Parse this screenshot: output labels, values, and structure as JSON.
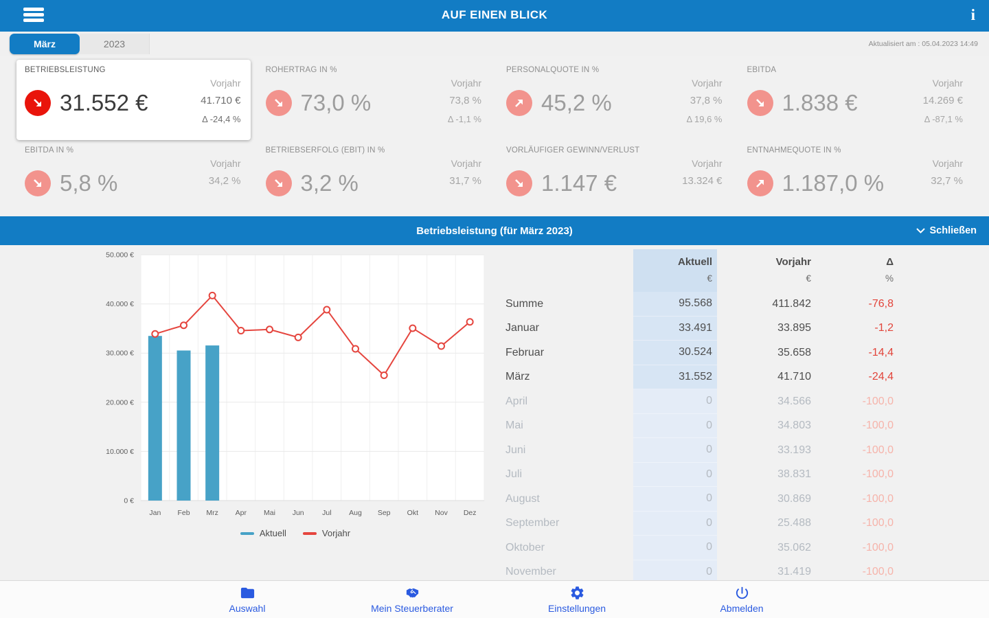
{
  "header": {
    "title": "AUF EINEN BLICK",
    "updated": "Aktualisiert am : 05.04.2023 14:49"
  },
  "tabs": [
    {
      "label": "März",
      "active": true
    },
    {
      "label": "2023",
      "active": false
    }
  ],
  "labels": {
    "vorjahr": "Vorjahr"
  },
  "kpi_cards": [
    {
      "label": "BETRIEBSLEISTUNG",
      "value": "31.552 €",
      "vorjahr": "41.710 €",
      "delta": "Δ -24,4 %",
      "trend": "down",
      "selected": true
    },
    {
      "label": "ROHERTRAG IN %",
      "value": "73,0 %",
      "vorjahr": "73,8 %",
      "delta": "Δ -1,1 %",
      "trend": "down",
      "selected": false
    },
    {
      "label": "PERSONALQUOTE IN %",
      "value": "45,2 %",
      "vorjahr": "37,8 %",
      "delta": "Δ 19,6 %",
      "trend": "up",
      "selected": false
    },
    {
      "label": "EBITDA",
      "value": "1.838 €",
      "vorjahr": "14.269 €",
      "delta": "Δ -87,1 %",
      "trend": "down",
      "selected": false
    },
    {
      "label": "EBITDA IN %",
      "value": "5,8 %",
      "vorjahr": "34,2 %",
      "delta": "",
      "trend": "down",
      "selected": false
    },
    {
      "label": "BETRIEBSERFOLG (EBIT) IN %",
      "value": "3,2 %",
      "vorjahr": "31,7 %",
      "delta": "",
      "trend": "down",
      "selected": false
    },
    {
      "label": "VORLÄUFIGER GEWINN/VERLUST",
      "value": "1.147 €",
      "vorjahr": "13.324 €",
      "delta": "",
      "trend": "down",
      "selected": false
    },
    {
      "label": "ENTNAHMEQUOTE IN %",
      "value": "1.187,0 %",
      "vorjahr": "32,7 %",
      "delta": "",
      "trend": "up",
      "selected": false
    }
  ],
  "detail": {
    "title": "Betriebsleistung (für März 2023)",
    "close_label": "Schließen"
  },
  "chart_data": {
    "type": "bar+line",
    "title": "Betriebsleistung (für März 2023)",
    "categories": [
      "Jan",
      "Feb",
      "Mrz",
      "Apr",
      "Mai",
      "Jun",
      "Jul",
      "Aug",
      "Sep",
      "Okt",
      "Nov",
      "Dez"
    ],
    "series": [
      {
        "name": "Aktuell",
        "type": "bar",
        "color": "#47a2c7",
        "values": [
          33491,
          30524,
          31552,
          0,
          0,
          0,
          0,
          0,
          0,
          0,
          0,
          0
        ]
      },
      {
        "name": "Vorjahr",
        "type": "line",
        "color": "#e5453e",
        "values": [
          33895,
          35658,
          41710,
          34566,
          34803,
          33193,
          38831,
          30869,
          25488,
          35062,
          31419,
          36348
        ]
      }
    ],
    "ylim": [
      0,
      50000
    ],
    "yticks": [
      {
        "value": 0,
        "label": "0 €"
      },
      {
        "value": 10000,
        "label": "10.000 €"
      },
      {
        "value": 20000,
        "label": "20.000 €"
      },
      {
        "value": 30000,
        "label": "30.000 €"
      },
      {
        "value": 40000,
        "label": "40.000 €"
      },
      {
        "value": 50000,
        "label": "50.000 €"
      }
    ],
    "grid": true,
    "legend_position": "bottom"
  },
  "table": {
    "columns": [
      {
        "label": "Aktuell",
        "unit": "€"
      },
      {
        "label": "Vorjahr",
        "unit": "€"
      },
      {
        "label": "Δ",
        "unit": "%"
      }
    ],
    "rows": [
      {
        "name": "Summe",
        "aktuell": "95.568",
        "vorjahr": "411.842",
        "delta": "-76,8",
        "muted": false
      },
      {
        "name": "Januar",
        "aktuell": "33.491",
        "vorjahr": "33.895",
        "delta": "-1,2",
        "muted": false
      },
      {
        "name": "Februar",
        "aktuell": "30.524",
        "vorjahr": "35.658",
        "delta": "-14,4",
        "muted": false
      },
      {
        "name": "März",
        "aktuell": "31.552",
        "vorjahr": "41.710",
        "delta": "-24,4",
        "muted": false
      },
      {
        "name": "April",
        "aktuell": "0",
        "vorjahr": "34.566",
        "delta": "-100,0",
        "muted": true
      },
      {
        "name": "Mai",
        "aktuell": "0",
        "vorjahr": "34.803",
        "delta": "-100,0",
        "muted": true
      },
      {
        "name": "Juni",
        "aktuell": "0",
        "vorjahr": "33.193",
        "delta": "-100,0",
        "muted": true
      },
      {
        "name": "Juli",
        "aktuell": "0",
        "vorjahr": "38.831",
        "delta": "-100,0",
        "muted": true
      },
      {
        "name": "August",
        "aktuell": "0",
        "vorjahr": "30.869",
        "delta": "-100,0",
        "muted": true
      },
      {
        "name": "September",
        "aktuell": "0",
        "vorjahr": "25.488",
        "delta": "-100,0",
        "muted": true
      },
      {
        "name": "Oktober",
        "aktuell": "0",
        "vorjahr": "35.062",
        "delta": "-100,0",
        "muted": true
      },
      {
        "name": "November",
        "aktuell": "0",
        "vorjahr": "31.419",
        "delta": "-100,0",
        "muted": true
      }
    ]
  },
  "bottom_nav": [
    {
      "label": "Auswahl",
      "icon": "folder-icon"
    },
    {
      "label": "Mein Steuerberater",
      "icon": "handshake-icon"
    },
    {
      "label": "Einstellungen",
      "icon": "gear-icon"
    },
    {
      "label": "Abmelden",
      "icon": "power-icon"
    }
  ],
  "colors": {
    "header_blue": "#127cc4",
    "nav_blue": "#2a5ae0",
    "kpi_red_selected": "#e9140b",
    "kpi_red_soft": "#f2938d",
    "bar_blue": "#47a2c7",
    "line_red": "#e5453e",
    "table_delta_red": "#e2443a",
    "aktuell_column_bg": "#d7e5f4"
  }
}
